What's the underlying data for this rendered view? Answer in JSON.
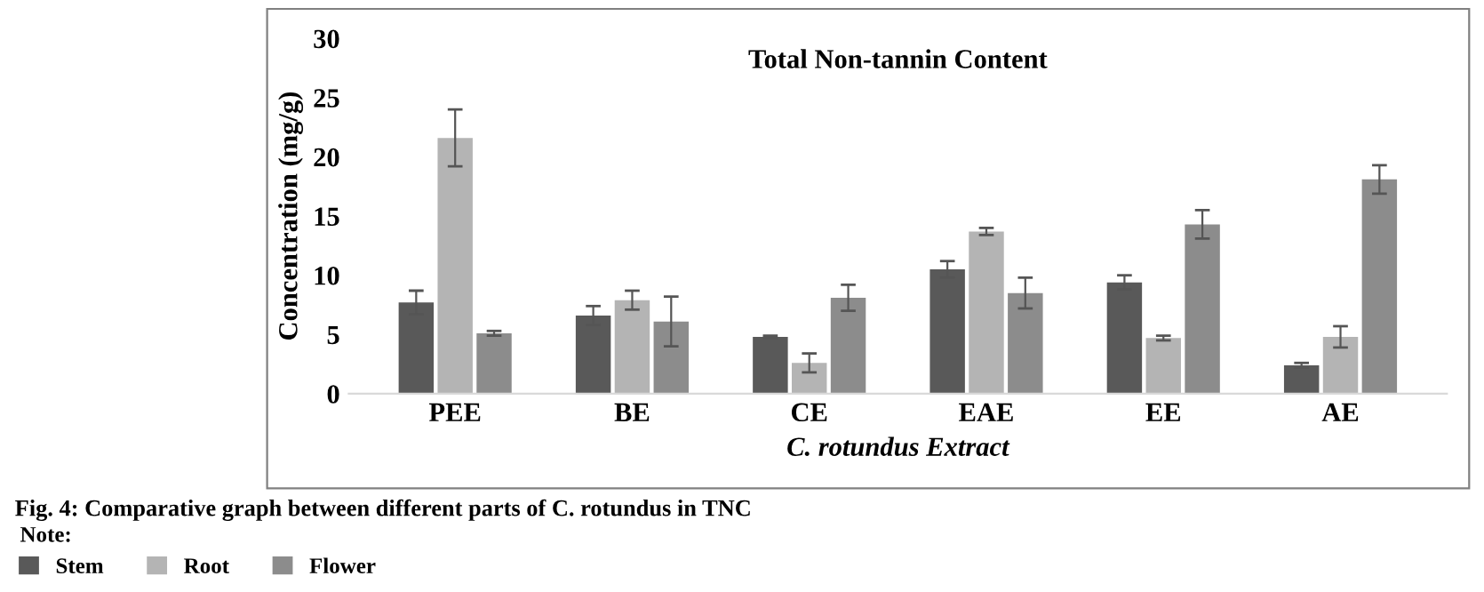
{
  "chart_data": {
    "type": "bar",
    "title": "Total Non-tannin Content",
    "xlabel": "C. rotundus Extract",
    "ylabel": "Concentration (mg/g)",
    "categories": [
      "PEE",
      "BE",
      "CE",
      "EAE",
      "EE",
      "AE"
    ],
    "series": [
      {
        "name": "Stem",
        "color": "#595959",
        "values": [
          7.7,
          6.6,
          4.8,
          10.5,
          9.4,
          2.4
        ],
        "errors": [
          1.0,
          0.8,
          0.1,
          0.7,
          0.6,
          0.2
        ]
      },
      {
        "name": "Root",
        "color": "#b4b4b4",
        "values": [
          21.6,
          7.9,
          2.6,
          13.7,
          4.7,
          4.8
        ],
        "errors": [
          2.4,
          0.8,
          0.8,
          0.3,
          0.2,
          0.9
        ]
      },
      {
        "name": "Flower",
        "color": "#8c8c8c",
        "values": [
          5.1,
          6.1,
          8.1,
          8.5,
          14.3,
          18.1
        ],
        "errors": [
          0.2,
          2.1,
          1.1,
          1.3,
          1.2,
          1.2
        ]
      }
    ],
    "ylim": [
      0,
      30
    ],
    "yticks": [
      0,
      5,
      10,
      15,
      20,
      25,
      30
    ],
    "grid": false,
    "legend": "bottom left",
    "legend_title": "Note:",
    "annotations": [
      "Fig. 4: Comparative graph between different parts of C. rotundus in TNC"
    ]
  }
}
